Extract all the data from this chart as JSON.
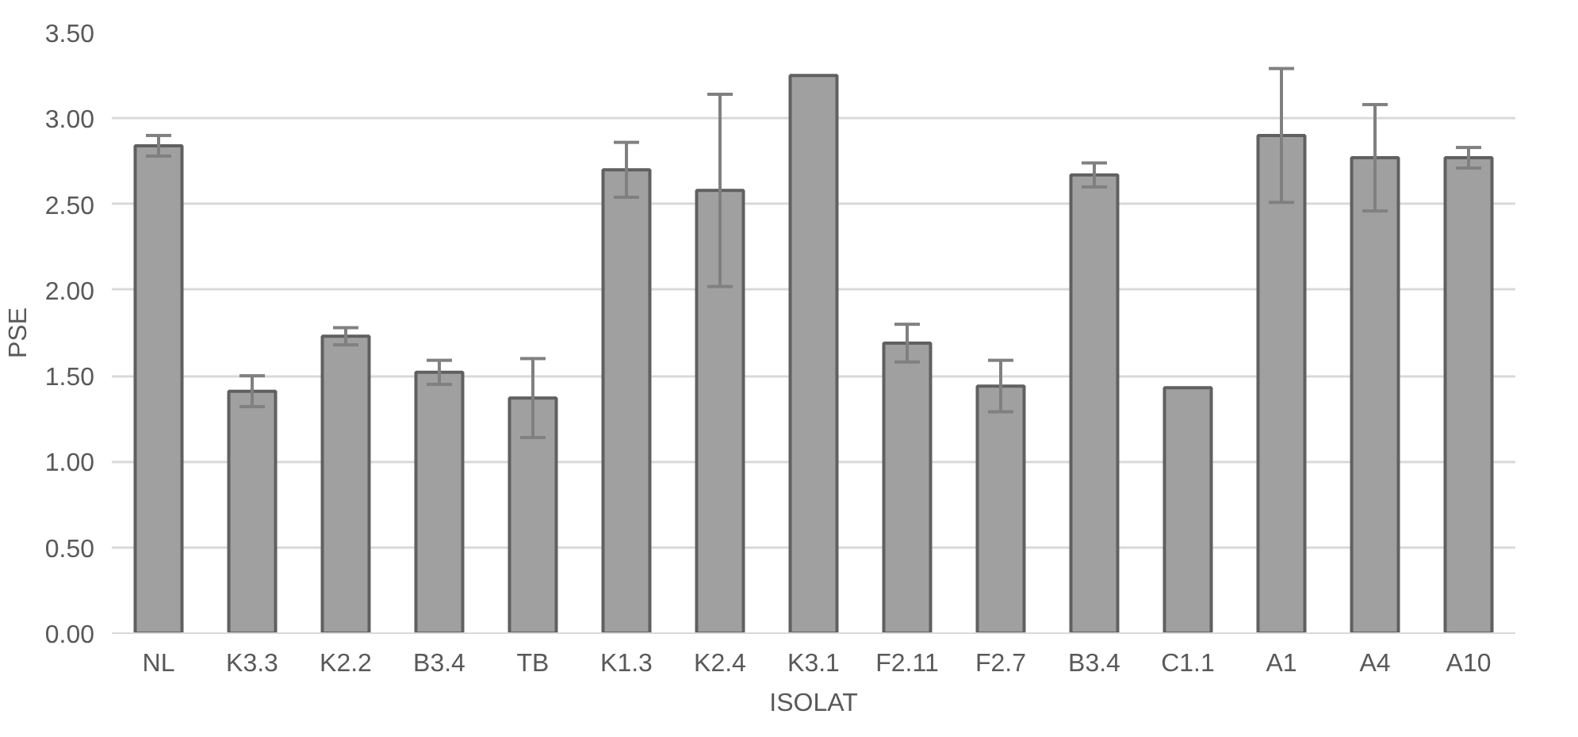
{
  "chart_data": {
    "type": "bar",
    "xlabel": "ISOLAT",
    "ylabel": "PSE",
    "categories": [
      "NL",
      "K3.3",
      "K2.2",
      "B3.4",
      "TB",
      "K1.3",
      "K2.4",
      "K3.1",
      "F2.11",
      "F2.7",
      "B3.4",
      "C1.1",
      "A1",
      "A4",
      "A10"
    ],
    "values": [
      2.84,
      1.41,
      1.73,
      1.52,
      1.37,
      2.7,
      2.58,
      3.25,
      1.69,
      1.44,
      2.67,
      1.43,
      2.9,
      2.77,
      2.77
    ],
    "errors": [
      0.06,
      0.09,
      0.05,
      0.07,
      0.23,
      0.16,
      0.56,
      null,
      0.11,
      0.15,
      0.07,
      null,
      0.39,
      0.31,
      0.06
    ],
    "color": "#a0a0a0",
    "ylim": [
      0,
      3.5
    ],
    "yticks": [
      {
        "value": 0,
        "label": "0.00"
      },
      {
        "value": 0.5,
        "label": "0.50"
      },
      {
        "value": 1,
        "label": "1.00"
      },
      {
        "value": 1.5,
        "label": "1.50"
      },
      {
        "value": 2,
        "label": "2.00"
      },
      {
        "value": 2.5,
        "label": "2.50"
      },
      {
        "value": 3,
        "label": "3.00"
      },
      {
        "value": 3.5,
        "label": "3.50"
      }
    ],
    "grid": "y"
  }
}
